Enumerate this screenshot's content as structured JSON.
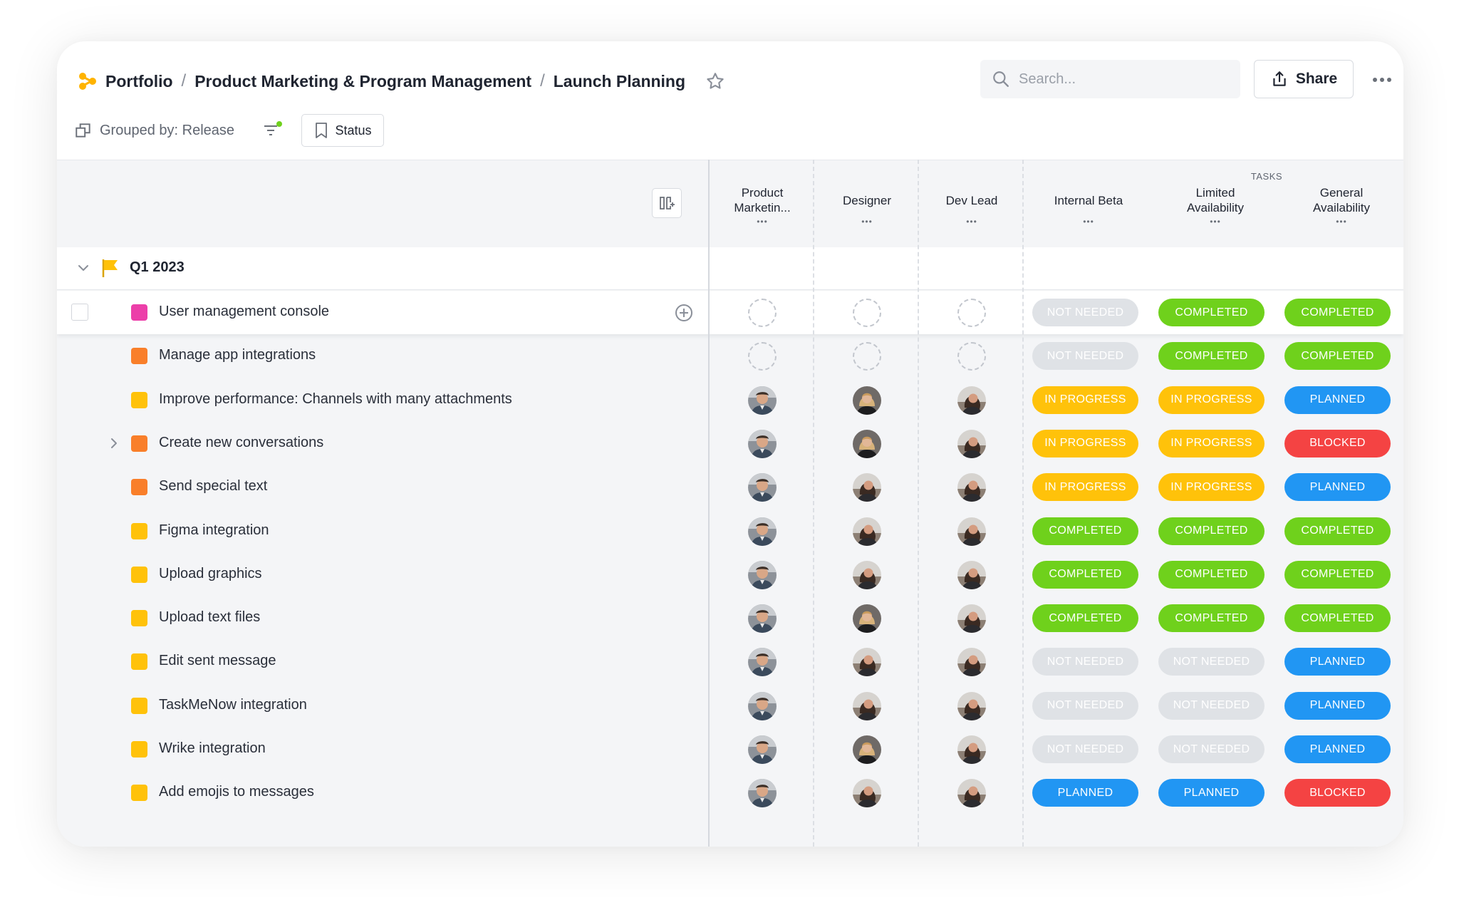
{
  "breadcrumb": {
    "items": [
      {
        "label": "Portfolio"
      },
      {
        "label": "Product Marketing & Program Management"
      },
      {
        "label": "Launch Planning"
      }
    ],
    "separator": "/"
  },
  "search": {
    "placeholder": "Search...",
    "value": ""
  },
  "share": {
    "label": "Share"
  },
  "toolbar": {
    "grouped_by": "Grouped by: Release",
    "status_label": "Status"
  },
  "columns": {
    "tasks_group_label": "TASKS",
    "items": [
      {
        "key": "pm",
        "label": "Product Marketin..."
      },
      {
        "key": "designer",
        "label": "Designer"
      },
      {
        "key": "devlead",
        "label": "Dev Lead"
      },
      {
        "key": "beta",
        "label": "Internal Beta"
      },
      {
        "key": "limited",
        "label": "Limited Availability"
      },
      {
        "key": "ga",
        "label": "General Availability"
      }
    ],
    "more_glyph": "•••"
  },
  "group": {
    "title": "Q1 2023",
    "flag_color": "#FFC107"
  },
  "status_styles": {
    "NOT NEEDED": {
      "bg": "#dfe2e6",
      "fg": "#ffffff"
    },
    "COMPLETED": {
      "bg": "#6fd11c",
      "fg": "#ffffff"
    },
    "IN PROGRESS": {
      "bg": "#ffc20a",
      "fg": "#ffffff"
    },
    "PLANNED": {
      "bg": "#2196f3",
      "fg": "#ffffff"
    },
    "BLOCKED": {
      "bg": "#f44343",
      "fg": "#ffffff"
    }
  },
  "rows": [
    {
      "name": "User management console",
      "color": "#ec3fa9",
      "selected": true,
      "expandable": false,
      "people": [
        "empty",
        "empty",
        "empty"
      ],
      "statuses": [
        "NOT NEEDED",
        "COMPLETED",
        "COMPLETED"
      ]
    },
    {
      "name": "Manage app integrations",
      "color": "#f97f2a",
      "selected": false,
      "expandable": false,
      "people": [
        "empty",
        "empty",
        "empty"
      ],
      "statuses": [
        "NOT NEEDED",
        "COMPLETED",
        "COMPLETED"
      ]
    },
    {
      "name": "Improve performance: Channels with many attachments",
      "color": "#ffc20a",
      "selected": false,
      "expandable": false,
      "people": [
        "man",
        "woman-blonde",
        "woman-dark"
      ],
      "statuses": [
        "IN PROGRESS",
        "IN PROGRESS",
        "PLANNED"
      ]
    },
    {
      "name": "Create new conversations",
      "color": "#f97f2a",
      "selected": false,
      "expandable": true,
      "people": [
        "man",
        "woman-blonde",
        "woman-dark"
      ],
      "statuses": [
        "IN PROGRESS",
        "IN PROGRESS",
        "BLOCKED"
      ]
    },
    {
      "name": "Send special text",
      "color": "#f97f2a",
      "selected": false,
      "expandable": false,
      "people": [
        "man",
        "woman-dark",
        "woman-dark"
      ],
      "statuses": [
        "IN PROGRESS",
        "IN PROGRESS",
        "PLANNED"
      ]
    },
    {
      "name": "Figma integration",
      "color": "#ffc20a",
      "selected": false,
      "expandable": false,
      "people": [
        "man",
        "woman-dark",
        "woman-dark"
      ],
      "statuses": [
        "COMPLETED",
        "COMPLETED",
        "COMPLETED"
      ]
    },
    {
      "name": "Upload graphics",
      "color": "#ffc20a",
      "selected": false,
      "expandable": false,
      "people": [
        "man",
        "woman-dark",
        "woman-dark"
      ],
      "statuses": [
        "COMPLETED",
        "COMPLETED",
        "COMPLETED"
      ]
    },
    {
      "name": "Upload text files",
      "color": "#ffc20a",
      "selected": false,
      "expandable": false,
      "people": [
        "man",
        "woman-blonde",
        "woman-dark"
      ],
      "statuses": [
        "COMPLETED",
        "COMPLETED",
        "COMPLETED"
      ]
    },
    {
      "name": "Edit sent message",
      "color": "#ffc20a",
      "selected": false,
      "expandable": false,
      "people": [
        "man",
        "woman-dark",
        "woman-dark"
      ],
      "statuses": [
        "NOT NEEDED",
        "NOT NEEDED",
        "PLANNED"
      ]
    },
    {
      "name": "TaskMeNow integration",
      "color": "#ffc20a",
      "selected": false,
      "expandable": false,
      "people": [
        "man",
        "woman-dark",
        "woman-dark"
      ],
      "statuses": [
        "NOT NEEDED",
        "NOT NEEDED",
        "PLANNED"
      ]
    },
    {
      "name": "Wrike integration",
      "color": "#ffc20a",
      "selected": false,
      "expandable": false,
      "people": [
        "man",
        "woman-blonde",
        "woman-dark"
      ],
      "statuses": [
        "NOT NEEDED",
        "NOT NEEDED",
        "PLANNED"
      ]
    },
    {
      "name": "Add emojis to messages",
      "color": "#ffc20a",
      "selected": false,
      "expandable": false,
      "people": [
        "man",
        "woman-dark",
        "woman-dark"
      ],
      "statuses": [
        "PLANNED",
        "PLANNED",
        "BLOCKED"
      ]
    }
  ],
  "icons": {
    "logo": "portfolio-logo-icon",
    "star": "star-icon",
    "search": "search-icon",
    "share": "share-icon",
    "more": "more-horizontal-icon",
    "group": "group-by-icon",
    "filter": "filter-icon",
    "status": "bookmark-icon",
    "column_settings": "column-settings-icon",
    "collapse": "chevron-down-icon",
    "expand": "chevron-right-icon",
    "flag": "flag-icon",
    "add": "plus-circle-icon"
  }
}
